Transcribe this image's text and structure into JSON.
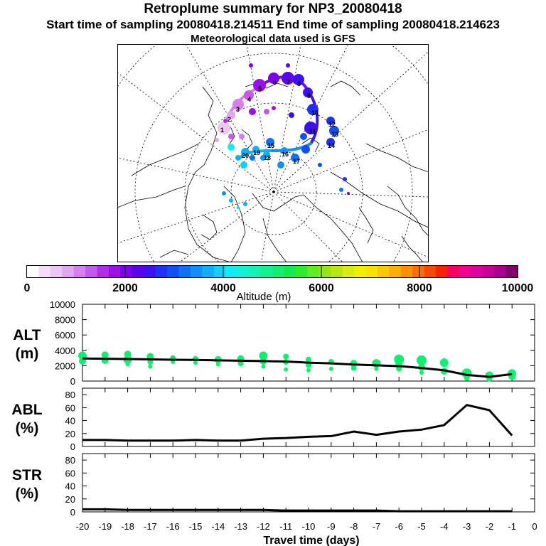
{
  "header": {
    "title": "Retroplume summary for NP3_20080418",
    "sampling_line": "Start time of sampling 20080418.214511     End time of sampling 20080418.214623",
    "met_line": "Meteorological data used is GFS"
  },
  "colorbar": {
    "label": "Altitude (m)",
    "ticks": [
      "0",
      "2000",
      "4000",
      "6000",
      "8000",
      "10000"
    ],
    "colors": [
      "#ffffff",
      "#f6dcf6",
      "#eec6f4",
      "#e3a6f2",
      "#d67fee",
      "#c45aea",
      "#b02ee6",
      "#9c10e8",
      "#7c00ec",
      "#5c00f0",
      "#3c10f2",
      "#2030f6",
      "#1050f6",
      "#1070f8",
      "#1090f8",
      "#10b0f8",
      "#10d0f8",
      "#10ecf4",
      "#10f4d4",
      "#10f4b0",
      "#10f490",
      "#10f070",
      "#10ec50",
      "#30ec30",
      "#60ec20",
      "#90e810",
      "#b8e810",
      "#d8ec10",
      "#f0f000",
      "#fce000",
      "#fcc800",
      "#fcb000",
      "#fc9000",
      "#fc7000",
      "#f84800",
      "#f82000",
      "#f80060",
      "#f40090",
      "#e000a0",
      "#c80098",
      "#a8008c",
      "#800070"
    ]
  },
  "map": {
    "trajectory_labels": [
      "1",
      "2",
      "3",
      "4",
      "5",
      "6",
      "7",
      "8",
      "9",
      "10",
      "11",
      "12",
      "13",
      "14",
      "15",
      "16",
      "17",
      "18",
      "19",
      "20"
    ]
  },
  "chart_data": [
    {
      "type": "line",
      "panel": "ALT",
      "ylabel_lines": [
        "ALT",
        "(m)"
      ],
      "x": [
        -20,
        -19,
        -18,
        -17,
        -16,
        -15,
        -14,
        -13,
        -12,
        -11,
        -10,
        -9,
        -8,
        -7,
        -6,
        -5,
        -4,
        -3,
        -2,
        -1
      ],
      "values": [
        2950,
        2900,
        2870,
        2820,
        2780,
        2750,
        2700,
        2650,
        2600,
        2550,
        2400,
        2300,
        2150,
        2050,
        1950,
        1700,
        1400,
        800,
        550,
        900
      ],
      "scatter": [
        {
          "x": -20,
          "y": 3300,
          "r": 6
        },
        {
          "x": -20,
          "y": 2600,
          "r": 5
        },
        {
          "x": -19,
          "y": 3400,
          "r": 5
        },
        {
          "x": -19,
          "y": 2700,
          "r": 5
        },
        {
          "x": -18,
          "y": 3500,
          "r": 5
        },
        {
          "x": -18,
          "y": 2800,
          "r": 6
        },
        {
          "x": -18,
          "y": 2200,
          "r": 3
        },
        {
          "x": -17,
          "y": 3200,
          "r": 5
        },
        {
          "x": -17,
          "y": 2500,
          "r": 4
        },
        {
          "x": -17,
          "y": 1900,
          "r": 3
        },
        {
          "x": -16,
          "y": 3000,
          "r": 4
        },
        {
          "x": -16,
          "y": 2500,
          "r": 3
        },
        {
          "x": -15,
          "y": 2900,
          "r": 4
        },
        {
          "x": -15,
          "y": 2400,
          "r": 3
        },
        {
          "x": -14,
          "y": 2800,
          "r": 5
        },
        {
          "x": -14,
          "y": 2200,
          "r": 3
        },
        {
          "x": -13,
          "y": 2900,
          "r": 5
        },
        {
          "x": -13,
          "y": 2300,
          "r": 4
        },
        {
          "x": -12,
          "y": 3300,
          "r": 6
        },
        {
          "x": -12,
          "y": 2600,
          "r": 5
        },
        {
          "x": -12,
          "y": 1900,
          "r": 3
        },
        {
          "x": -11,
          "y": 3200,
          "r": 4
        },
        {
          "x": -11,
          "y": 2500,
          "r": 4
        },
        {
          "x": -11,
          "y": 1500,
          "r": 3
        },
        {
          "x": -10,
          "y": 2800,
          "r": 4
        },
        {
          "x": -10,
          "y": 2100,
          "r": 4
        },
        {
          "x": -10,
          "y": 1400,
          "r": 3
        },
        {
          "x": -9,
          "y": 2500,
          "r": 4
        },
        {
          "x": -9,
          "y": 1600,
          "r": 3
        },
        {
          "x": -8,
          "y": 2300,
          "r": 5
        },
        {
          "x": -8,
          "y": 1700,
          "r": 4
        },
        {
          "x": -7,
          "y": 2300,
          "r": 6
        },
        {
          "x": -7,
          "y": 1600,
          "r": 3
        },
        {
          "x": -6,
          "y": 2800,
          "r": 7
        },
        {
          "x": -6,
          "y": 2100,
          "r": 5
        },
        {
          "x": -6,
          "y": 1600,
          "r": 4
        },
        {
          "x": -5,
          "y": 2700,
          "r": 7
        },
        {
          "x": -5,
          "y": 1800,
          "r": 5
        },
        {
          "x": -5,
          "y": 1100,
          "r": 3
        },
        {
          "x": -4,
          "y": 2400,
          "r": 6
        },
        {
          "x": -4,
          "y": 1300,
          "r": 5
        },
        {
          "x": -3,
          "y": 1000,
          "r": 7
        },
        {
          "x": -3,
          "y": 400,
          "r": 4
        },
        {
          "x": -2,
          "y": 700,
          "r": 6
        },
        {
          "x": -2,
          "y": 300,
          "r": 4
        },
        {
          "x": -1,
          "y": 1000,
          "r": 6
        },
        {
          "x": -1,
          "y": 600,
          "r": 5
        }
      ],
      "ylim": [
        0,
        10000
      ],
      "yticks": [
        "0",
        "2000",
        "4000",
        "6000",
        "8000",
        "10000"
      ]
    },
    {
      "type": "line",
      "panel": "ABL",
      "ylabel_lines": [
        "ABL",
        "(%)"
      ],
      "x": [
        -20,
        -19,
        -18,
        -17,
        -16,
        -15,
        -14,
        -13,
        -12,
        -11,
        -10,
        -9,
        -8,
        -7,
        -6,
        -5,
        -4,
        -3,
        -2,
        -1
      ],
      "values": [
        10,
        10,
        9,
        9,
        9,
        10,
        9,
        9,
        12,
        13,
        15,
        16,
        23,
        18,
        23,
        26,
        33,
        64,
        56,
        17
      ],
      "ylim": [
        0,
        90
      ],
      "yticks": [
        "0",
        "20",
        "40",
        "60",
        "80"
      ]
    },
    {
      "type": "line",
      "panel": "STR",
      "ylabel_lines": [
        "STR",
        "(%)"
      ],
      "x": [
        -20,
        -19,
        -18,
        -17,
        -16,
        -15,
        -14,
        -13,
        -12,
        -11,
        -10,
        -9,
        -8,
        -7,
        -6,
        -5,
        -4,
        -3,
        -2,
        -1
      ],
      "values": [
        4,
        4,
        3,
        3,
        3,
        3,
        3,
        3,
        3,
        2,
        2,
        2,
        2,
        2,
        1,
        1,
        1,
        1,
        1,
        1
      ],
      "ylim": [
        0,
        90
      ],
      "yticks": [
        "0",
        "20",
        "40",
        "60",
        "80"
      ]
    }
  ],
  "xaxis": {
    "label": "Travel time (days)",
    "ticks": [
      "-20",
      "-19",
      "-18",
      "-17",
      "-16",
      "-15",
      "-14",
      "-13",
      "-12",
      "-11",
      "-10",
      "-9",
      "-8",
      "-7",
      "-6",
      "-5",
      "-4",
      "-3",
      "-2",
      "-1",
      "0"
    ]
  }
}
